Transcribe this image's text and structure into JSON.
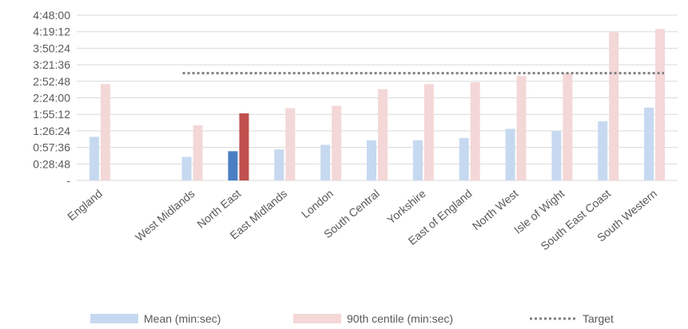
{
  "chart_data": {
    "type": "bar",
    "categories": [
      "England",
      "",
      "West Midlands",
      "North East",
      "East Midlands",
      "London",
      "South Central",
      "Yorkshire",
      "East of England",
      "North West",
      "Isle of Wight",
      "South East Coast",
      "South Western"
    ],
    "y_tick_labels": [
      "-",
      "0:28:48",
      "0:57:36",
      "1:26:24",
      "1:55:12",
      "2:24:00",
      "2:52:48",
      "3:21:36",
      "3:50:24",
      "4:19:12",
      "4:48:00"
    ],
    "ylim_minutes": [
      0,
      288
    ],
    "series": [
      {
        "name": "Mean (min:sec)",
        "color": "#c6d9f0",
        "highlight_color": "#4a7fc1",
        "values_minutes": [
          76,
          null,
          41,
          51,
          54,
          62,
          70,
          70,
          74,
          90,
          86,
          103,
          127
        ]
      },
      {
        "name": "90th centile (min:sec)",
        "color": "#f4d7d7",
        "highlight_color": "#c0504d",
        "values_minutes": [
          168,
          null,
          96,
          117,
          126,
          130,
          159,
          168,
          171,
          182,
          187,
          258,
          264
        ]
      },
      {
        "name": "Target",
        "color": "#7f7f7f",
        "style": "dotted",
        "value_minutes": 187
      }
    ],
    "highlight_category": "North East",
    "grid": true,
    "legend_position": "bottom"
  }
}
